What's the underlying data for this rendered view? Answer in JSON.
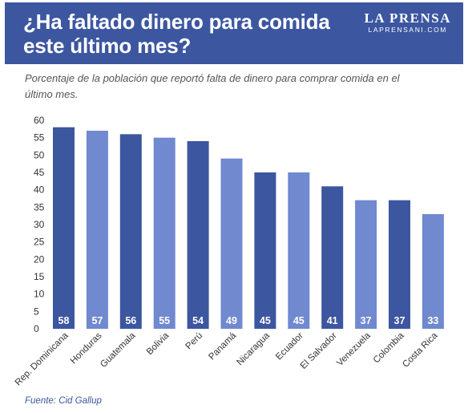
{
  "header": {
    "title": "¿Ha faltado dinero para comida este último mes?",
    "brand_name": "LA PRENSA",
    "brand_url": "LAPRENSANI.COM"
  },
  "subtitle": "Porcentaje de la población que reportó falta de dinero para comprar comida en el último mes.",
  "source": "Fuente: Cid Gallup",
  "colors": {
    "dark": "#3c56a0",
    "light": "#7089cf",
    "header_bg": "#3c56a0",
    "source": "#3c56a0"
  },
  "chart_data": {
    "type": "bar",
    "categories": [
      "Rep. Dominicana",
      "Honduras",
      "Guatemala",
      "Bolivia",
      "Perú",
      "Panamá",
      "Nicaragua",
      "Ecuador",
      "El Salvador",
      "Venezuela",
      "Colombia",
      "Costa Rica"
    ],
    "values": [
      58,
      57,
      56,
      55,
      54,
      49,
      45,
      45,
      41,
      37,
      37,
      33
    ],
    "bar_colors": [
      "dark",
      "light",
      "dark",
      "light",
      "dark",
      "light",
      "dark",
      "light",
      "dark",
      "light",
      "dark",
      "light"
    ],
    "ylim": [
      0,
      60
    ],
    "yticks": [
      0,
      5,
      10,
      15,
      20,
      25,
      30,
      35,
      40,
      45,
      50,
      55,
      60
    ],
    "grid": false,
    "data_labels": true
  }
}
